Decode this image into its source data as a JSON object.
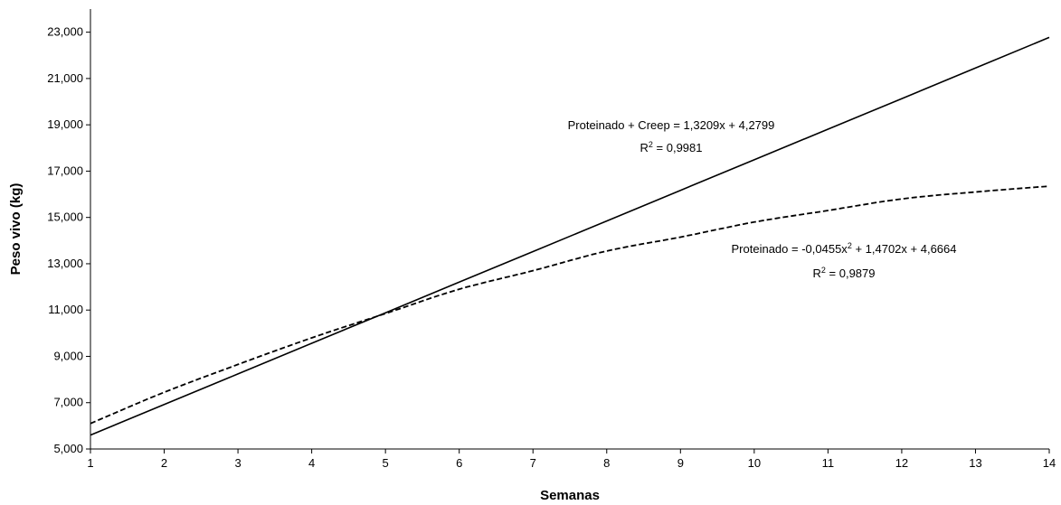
{
  "chart_data": {
    "type": "line",
    "xlabel": "Semanas",
    "ylabel": "Peso vivo (kg)",
    "xlim": [
      1,
      14
    ],
    "ylim": [
      5000,
      24000
    ],
    "x_ticks": [
      "1",
      "2",
      "3",
      "4",
      "5",
      "6",
      "7",
      "8",
      "9",
      "10",
      "11",
      "12",
      "13",
      "14"
    ],
    "y_ticks": [
      "5,000",
      "7,000",
      "9,000",
      "11,000",
      "13,000",
      "15,000",
      "17,000",
      "19,000",
      "21,000",
      "23,000"
    ],
    "grid": false,
    "legend": "none",
    "series": [
      {
        "style": "solid",
        "color": "#000000",
        "x": [
          1,
          2,
          3,
          4,
          5,
          6,
          7,
          8,
          9,
          10,
          11,
          12,
          13,
          14
        ],
        "y": [
          5600,
          6921,
          8242,
          9563,
          10884,
          12205,
          13526,
          14847,
          16168,
          17489,
          18810,
          20131,
          21452,
          22773
        ]
      },
      {
        "style": "dashed",
        "color": "#000000",
        "x": [
          1,
          2,
          3,
          4,
          5,
          6,
          7,
          8,
          9,
          10,
          11,
          12,
          13,
          14
        ],
        "y": [
          6100,
          7450,
          8650,
          9800,
          10850,
          11900,
          12700,
          13550,
          14150,
          14800,
          15300,
          15800,
          16100,
          16350
        ]
      }
    ],
    "annotations": [
      {
        "line1": "Proteinado + Creep  = 1,3209x + 4,2799",
        "r2_prefix": "R",
        "r2_sup": "2",
        "r2_value": " = 0,9981"
      },
      {
        "line1_a": "Proteinado = -0,0455x",
        "line1_sup": "2",
        "line1_b": " + 1,4702x + 4,6664",
        "r2_prefix": "R",
        "r2_sup": "2",
        "r2_value": " = 0,9879"
      }
    ]
  }
}
